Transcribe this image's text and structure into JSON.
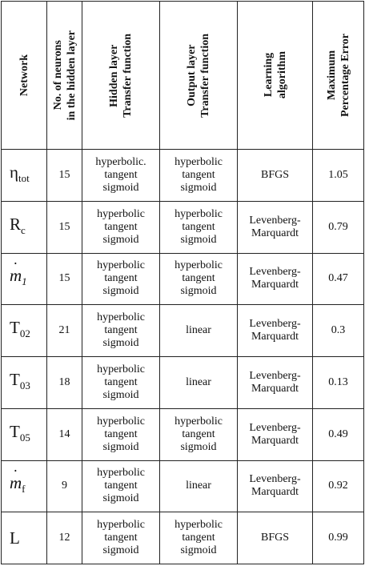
{
  "headers": {
    "network": "Network",
    "neurons": [
      "No. of neurons",
      "in the hidden layer"
    ],
    "hidden_tf": [
      "Hidden layer",
      "Transfer function"
    ],
    "output_tf": [
      "Output layer",
      "Transfer function"
    ],
    "learning": [
      "Learning",
      "algorithm"
    ],
    "error": [
      "Maximum",
      "Percentage Error"
    ]
  },
  "rows": [
    {
      "net_main": "η",
      "net_sub": "tot",
      "neurons": "15",
      "hidden": [
        "hyperbolic.",
        "tangent",
        "sigmoid"
      ],
      "output": [
        "hyperbolic",
        "tangent",
        "sigmoid"
      ],
      "algo": [
        "BFGS"
      ],
      "error": "1.05"
    },
    {
      "net_main": "R",
      "net_sub": "c",
      "neurons": "15",
      "hidden": [
        "hyperbolic",
        "tangent",
        "sigmoid"
      ],
      "output": [
        "hyperbolic",
        "tangent",
        "sigmoid"
      ],
      "algo": [
        "Levenberg-",
        "Marquardt"
      ],
      "error": "0.79"
    },
    {
      "net_main": "m",
      "net_sub": "1",
      "neurons": "15",
      "hidden": [
        "hyperbolic",
        "tangent",
        "sigmoid"
      ],
      "output": [
        "hyperbolic",
        "tangent",
        "sigmoid"
      ],
      "algo": [
        "Levenberg-",
        "Marquardt"
      ],
      "error": "0.47"
    },
    {
      "net_main": "T",
      "net_sub": "02",
      "neurons": "21",
      "hidden": [
        "hyperbolic",
        "tangent",
        "sigmoid"
      ],
      "output": [
        "linear"
      ],
      "algo": [
        "Levenberg-",
        "Marquardt"
      ],
      "error": "0.3"
    },
    {
      "net_main": "T",
      "net_sub": "03",
      "neurons": "18",
      "hidden": [
        "hyperbolic",
        "tangent",
        "sigmoid"
      ],
      "output": [
        "linear"
      ],
      "algo": [
        "Levenberg-",
        "Marquardt"
      ],
      "error": "0.13"
    },
    {
      "net_main": "T",
      "net_sub": "05",
      "neurons": "14",
      "hidden": [
        "hyperbolic",
        "tangent",
        "sigmoid"
      ],
      "output": [
        "hyperbolic",
        "tangent",
        "sigmoid"
      ],
      "algo": [
        "Levenberg-",
        "Marquardt"
      ],
      "error": "0.49"
    },
    {
      "net_main": "m",
      "net_sub": "f",
      "neurons": "9",
      "hidden": [
        "hyperbolic",
        "tangent",
        "sigmoid"
      ],
      "output": [
        "linear"
      ],
      "algo": [
        "Levenberg-",
        "Marquardt"
      ],
      "error": "0.92"
    },
    {
      "net_main": "L",
      "net_sub": "",
      "neurons": "12",
      "hidden": [
        "hyperbolic",
        "tangent",
        "sigmoid"
      ],
      "output": [
        "hyperbolic",
        "tangent",
        "sigmoid"
      ],
      "algo": [
        "BFGS"
      ],
      "error": "0.99"
    }
  ]
}
